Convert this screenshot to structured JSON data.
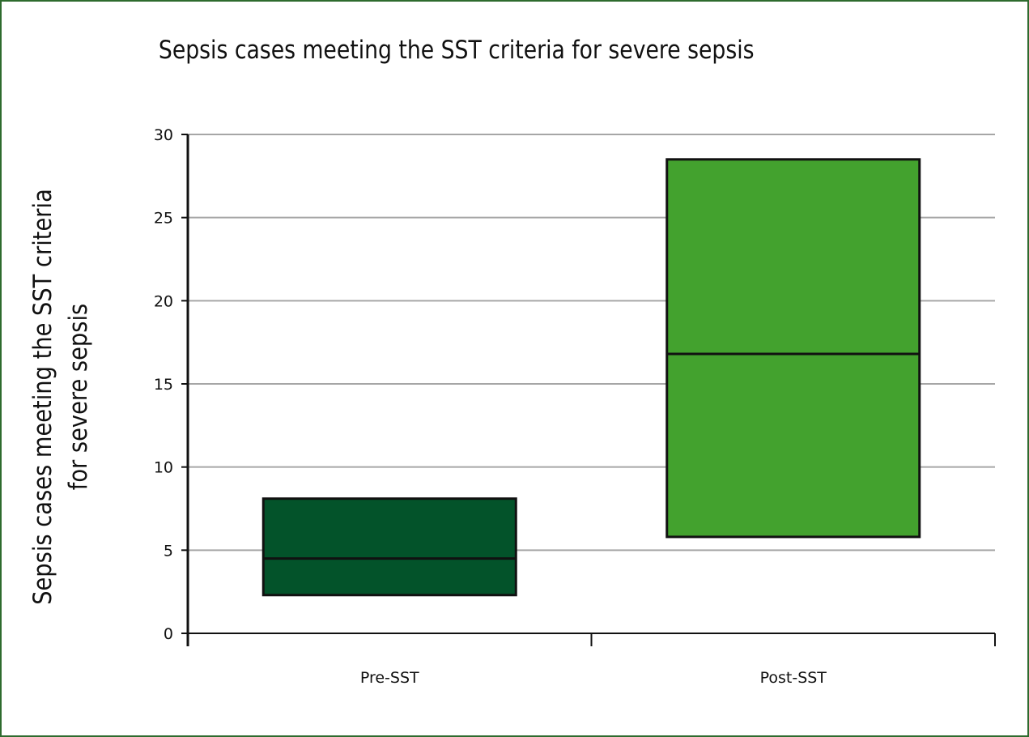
{
  "chart_data": {
    "type": "box",
    "title": "Sepsis cases meeting the SST criteria for severe sepsis",
    "ylabel_lines": [
      "Sepsis cases meeting the SST criteria",
      "for severe sepsis"
    ],
    "xlabel": "",
    "categories": [
      "Pre-SST",
      "Post-SST"
    ],
    "boxes": [
      {
        "category": "Pre-SST",
        "q1": 2.3,
        "median": 4.5,
        "q3": 8.1,
        "color": "#03532a"
      },
      {
        "category": "Post-SST",
        "q1": 5.8,
        "median": 16.8,
        "q3": 28.5,
        "color": "#43a22e"
      }
    ],
    "ylim": [
      0,
      30
    ],
    "yticks": [
      0,
      5,
      10,
      15,
      20,
      25,
      30
    ],
    "grid": true,
    "legend": "none"
  },
  "colors": {
    "frame": "#2e6b2e",
    "grid": "#a6a6a6",
    "axis": "#111111"
  }
}
